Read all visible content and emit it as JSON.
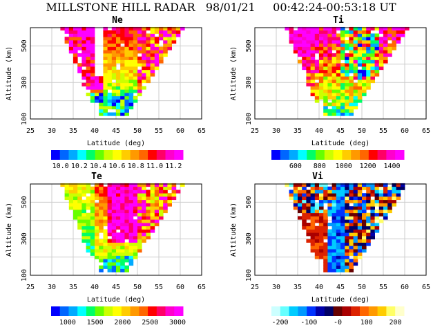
{
  "header": {
    "title": "MILLSTONE HILL RADAR   98/01/21     00:42:24-00:53:18 UT"
  },
  "chart_data": [
    {
      "type": "heatmap",
      "title": "Ne",
      "xlabel": "Latitude (deg)",
      "ylabel": "Altitude (km)",
      "xlim": [
        25,
        65
      ],
      "ylim": [
        100,
        600
      ],
      "xticks": [
        "25",
        "30",
        "35",
        "40",
        "45",
        "50",
        "55",
        "60",
        "65"
      ],
      "yticks": [
        "100",
        "300",
        "500"
      ],
      "colorbar": {
        "ticks": [
          "10.0",
          "10.2",
          "10.4",
          "10.6",
          "10.8",
          "11.0",
          "11.2"
        ],
        "range": [
          9.9,
          11.3
        ]
      },
      "pattern": "ne"
    },
    {
      "type": "heatmap",
      "title": "Ti",
      "xlabel": "Latitude (deg)",
      "ylabel": "Altitude (km)",
      "xlim": [
        25,
        65
      ],
      "ylim": [
        100,
        600
      ],
      "xticks": [
        "25",
        "30",
        "35",
        "40",
        "45",
        "50",
        "55",
        "60",
        "65"
      ],
      "yticks": [
        "100",
        "300",
        "500"
      ],
      "colorbar": {
        "ticks": [
          "600",
          "800",
          "1000",
          "1200",
          "1400"
        ],
        "range": [
          400,
          1500
        ]
      },
      "pattern": "ti"
    },
    {
      "type": "heatmap",
      "title": "Te",
      "xlabel": "Latitude (deg)",
      "ylabel": "Altitude (km)",
      "xlim": [
        25,
        65
      ],
      "ylim": [
        100,
        600
      ],
      "xticks": [
        "25",
        "30",
        "35",
        "40",
        "45",
        "50",
        "55",
        "60",
        "65"
      ],
      "yticks": [
        "100",
        "300",
        "500"
      ],
      "colorbar": {
        "ticks": [
          "1000",
          "1500",
          "2000",
          "2500",
          "3000"
        ],
        "range": [
          700,
          3100
        ]
      },
      "pattern": "te"
    },
    {
      "type": "heatmap",
      "title": "Vi",
      "xlabel": "Latitude (deg)",
      "ylabel": "Altitude (km)",
      "xlim": [
        25,
        65
      ],
      "ylim": [
        100,
        600
      ],
      "xticks": [
        "25",
        "30",
        "35",
        "40",
        "45",
        "50",
        "55",
        "60",
        "65"
      ],
      "yticks": [
        "100",
        "300",
        "500"
      ],
      "colorbar": {
        "ticks": [
          "-200",
          "-100",
          "-0",
          "100",
          "200"
        ],
        "range": [
          -230,
          230
        ]
      },
      "pattern": "vi"
    }
  ],
  "colors": {
    "rainbow": [
      "#0000ff",
      "#0066ff",
      "#00aaff",
      "#00ffff",
      "#00ff66",
      "#66ff00",
      "#ccff00",
      "#ffff00",
      "#ffcc00",
      "#ff9900",
      "#ff6600",
      "#ff0000",
      "#ff0066",
      "#ff00cc",
      "#ff00ff"
    ],
    "diverging": [
      "#ccffff",
      "#66ffff",
      "#00ccff",
      "#0099ff",
      "#0033ff",
      "#0000aa",
      "#000066",
      "#660000",
      "#aa0000",
      "#dd2200",
      "#ff6600",
      "#ff9900",
      "#ffcc00",
      "#ffff66",
      "#ffffcc"
    ]
  }
}
